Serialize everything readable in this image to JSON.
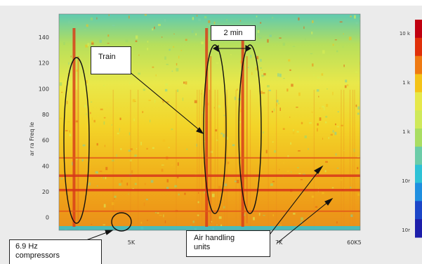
{
  "chart_data": {
    "type": "heatmap",
    "title": "",
    "xlabel": "",
    "ylabel": "ar ra Freq le",
    "x_tick_labels": [
      "5K",
      "7K",
      "60K5"
    ],
    "y_tick_labels": [
      "0",
      "20",
      "40",
      "60",
      "80",
      "100",
      "120",
      "140"
    ],
    "ylim": [
      0,
      150
    ],
    "colorbar_labels": [
      "10 k",
      "1 k",
      "1 k",
      "10r",
      "10r"
    ],
    "colormap": [
      "#c00010",
      "#e0300a",
      "#ef7a12",
      "#f4c318",
      "#e6e84a",
      "#cfe95a",
      "#a9dd62",
      "#6ccca8",
      "#2ec2d6",
      "#1f8fe0",
      "#1c46c8",
      "#1d1eaa"
    ],
    "horizontal_bands_y": [
      38,
      28,
      13,
      50
    ],
    "vertical_events_x_fraction": [
      0.05,
      0.49,
      0.61
    ],
    "annotations": {
      "train": "Train",
      "interval": "2 min",
      "compressors": "6.9 Hz compressors",
      "air_handling": "Air handling units"
    }
  }
}
